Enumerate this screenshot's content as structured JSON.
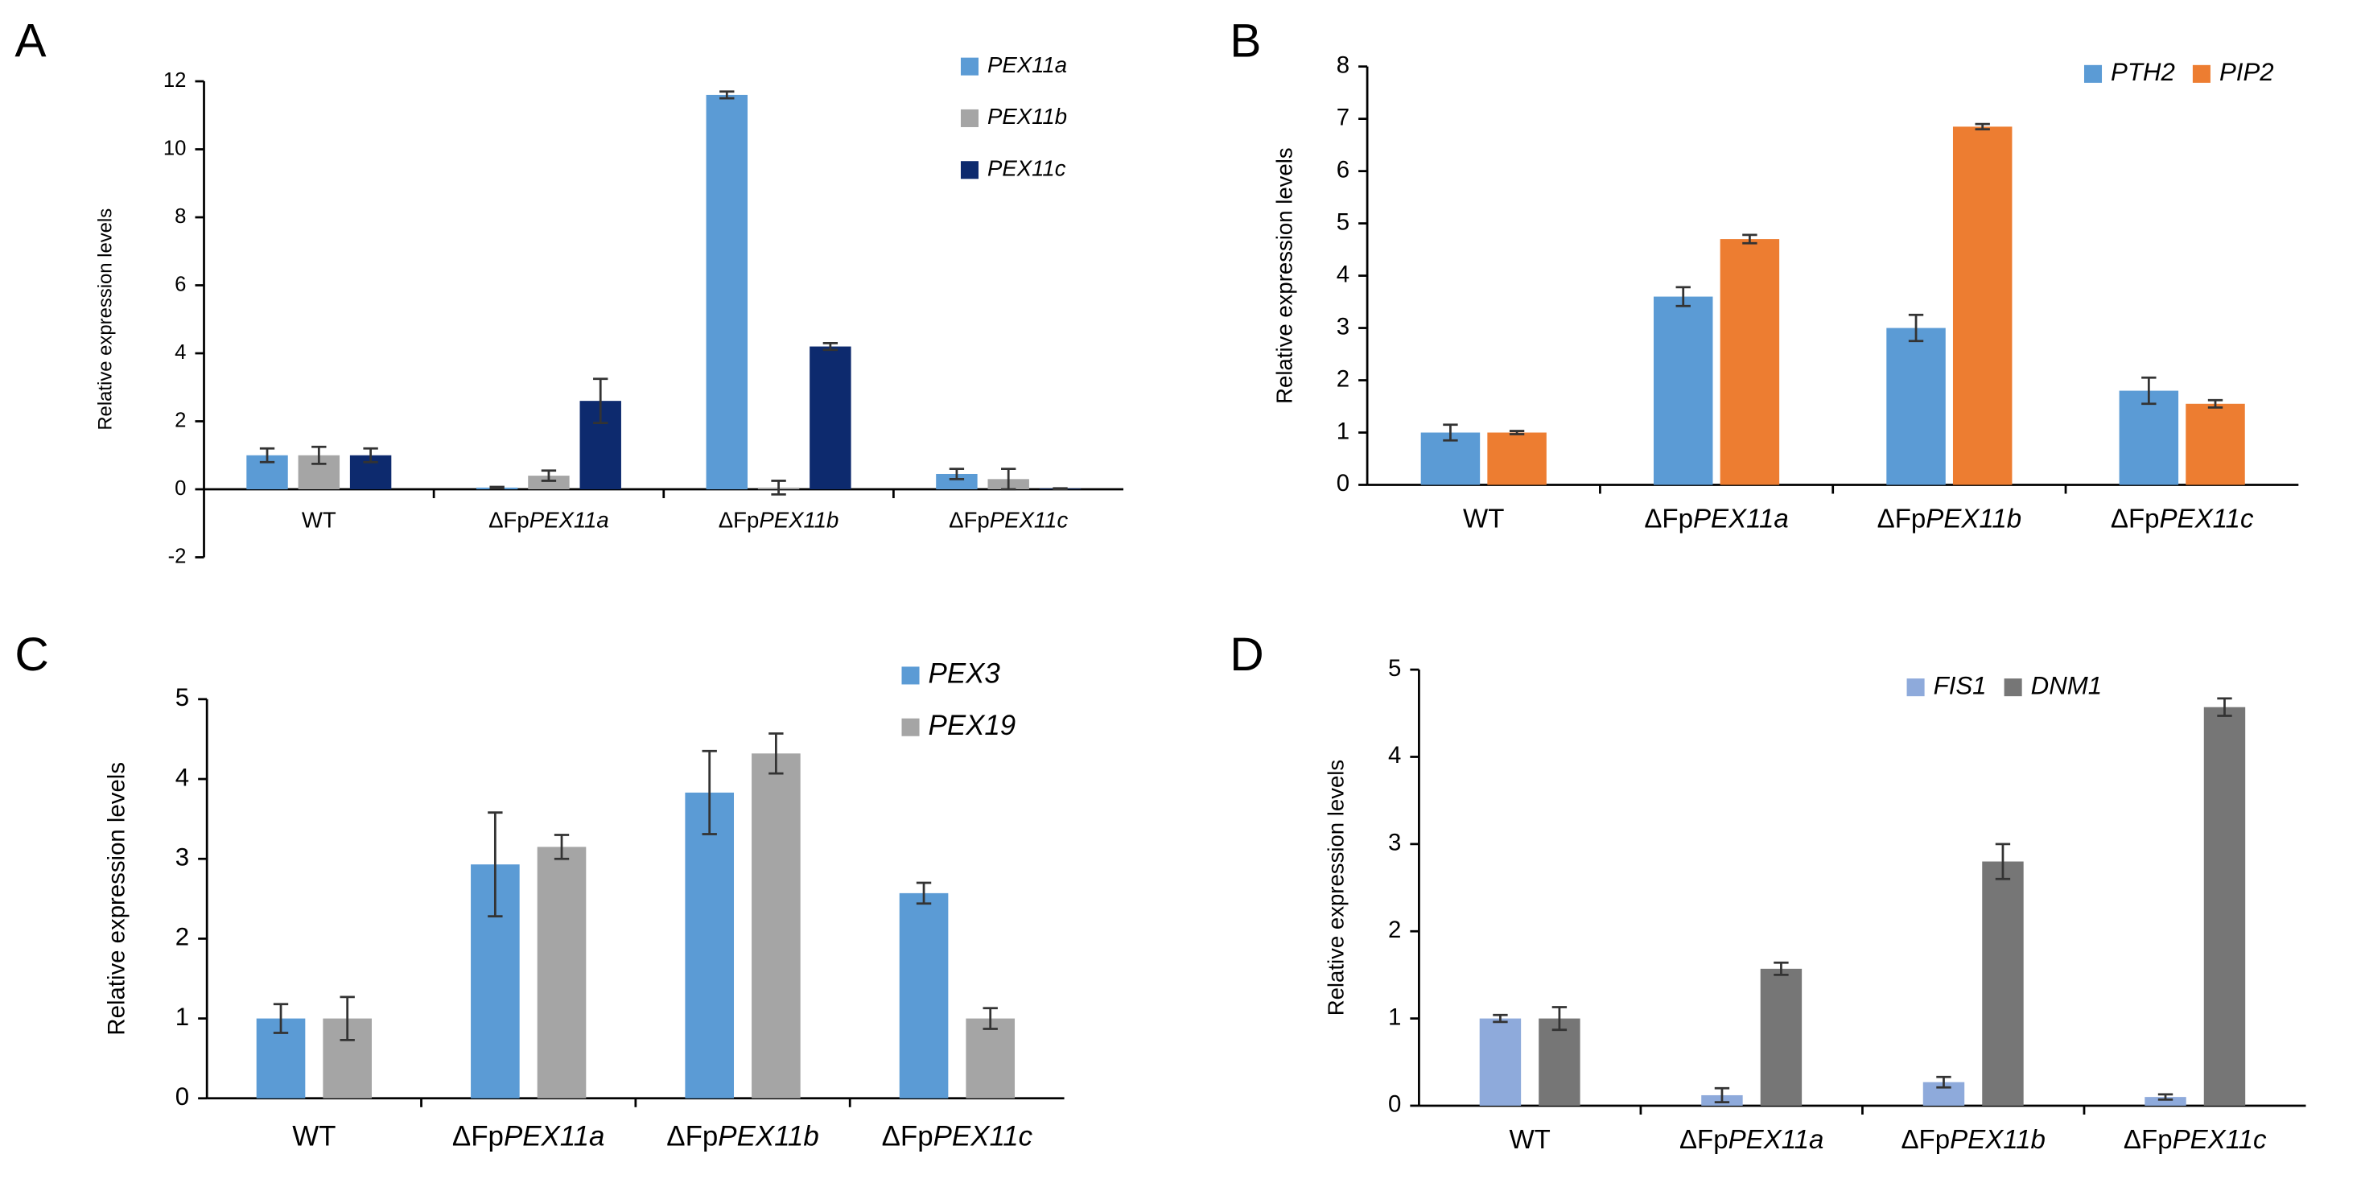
{
  "chart_data": [
    {
      "type": "bar",
      "label": "A",
      "ylabel": "Relative expression levels",
      "categories": [
        "WT",
        "ΔFpPEX11a",
        "ΔFpPEX11b",
        "ΔFpPEX11c"
      ],
      "series": [
        {
          "name": "PEX11a",
          "color": "#5b9bd5",
          "values": [
            1.0,
            0.05,
            11.6,
            0.45
          ],
          "errors": [
            0.2,
            0.02,
            0.1,
            0.15
          ]
        },
        {
          "name": "PEX11b",
          "color": "#a5a5a5",
          "values": [
            1.0,
            0.4,
            0.05,
            0.3
          ],
          "errors": [
            0.25,
            0.15,
            0.2,
            0.3
          ]
        },
        {
          "name": "PEX11c",
          "color": "#0d2a6e",
          "values": [
            1.0,
            2.6,
            4.2,
            0.02
          ],
          "errors": [
            0.2,
            0.65,
            0.1,
            0.01
          ]
        }
      ],
      "ylim": [
        -2,
        12
      ],
      "yticks": [
        -2,
        0,
        2,
        4,
        6,
        8,
        10,
        12
      ],
      "legend": "upper right"
    },
    {
      "type": "bar",
      "label": "B",
      "ylabel": "Relative expression levels",
      "categories": [
        "WT",
        "ΔFpPEX11a",
        "ΔFpPEX11b",
        "ΔFpPEX11c"
      ],
      "series": [
        {
          "name": "PTH2",
          "color": "#5b9bd5",
          "values": [
            1.0,
            3.6,
            3.0,
            1.8
          ],
          "errors": [
            0.15,
            0.18,
            0.25,
            0.25
          ]
        },
        {
          "name": "PIP2",
          "color": "#ed7d31",
          "values": [
            1.0,
            4.7,
            6.85,
            1.55
          ],
          "errors": [
            0.03,
            0.08,
            0.05,
            0.07
          ]
        }
      ],
      "ylim": [
        0,
        8
      ],
      "yticks": [
        0,
        1,
        2,
        3,
        4,
        5,
        6,
        7,
        8
      ],
      "legend": "upper right"
    },
    {
      "type": "bar",
      "label": "C",
      "ylabel": "Relative expression levels",
      "categories": [
        "WT",
        "ΔFpPEX11a",
        "ΔFpPEX11b",
        "ΔFpPEX11c"
      ],
      "series": [
        {
          "name": "PEX3",
          "color": "#5b9bd5",
          "values": [
            1.0,
            2.93,
            3.83,
            2.57
          ],
          "errors": [
            0.18,
            0.65,
            0.52,
            0.13
          ]
        },
        {
          "name": "PEX19",
          "color": "#a5a5a5",
          "values": [
            1.0,
            3.15,
            4.32,
            1.0
          ],
          "errors": [
            0.27,
            0.15,
            0.25,
            0.13
          ]
        }
      ],
      "ylim": [
        0,
        5
      ],
      "yticks": [
        0,
        1,
        2,
        3,
        4,
        5
      ],
      "legend": "upper right"
    },
    {
      "type": "bar",
      "label": "D",
      "ylabel": "Relative expression levels",
      "categories": [
        "WT",
        "ΔFpPEX11a",
        "ΔFpPEX11b",
        "ΔFpPEX11c"
      ],
      "series": [
        {
          "name": "FIS1",
          "color": "#8eaadb",
          "values": [
            1.0,
            0.12,
            0.27,
            0.1
          ],
          "errors": [
            0.04,
            0.08,
            0.06,
            0.03
          ]
        },
        {
          "name": "DNM1",
          "color": "#767676",
          "values": [
            1.0,
            1.57,
            2.8,
            4.57
          ],
          "errors": [
            0.13,
            0.07,
            0.2,
            0.1
          ]
        }
      ],
      "ylim": [
        0,
        5
      ],
      "yticks": [
        0,
        1,
        2,
        3,
        4,
        5
      ],
      "legend": "upper right"
    }
  ]
}
